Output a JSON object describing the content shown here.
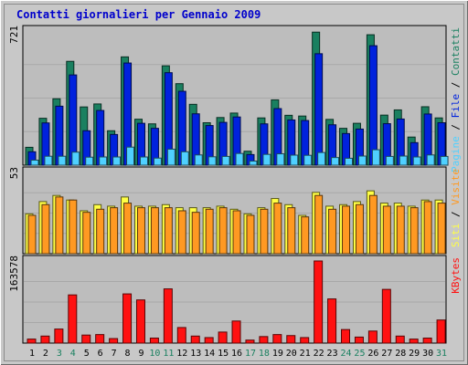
{
  "title": "Contatti giornalieri per Gennaio 2009",
  "colors": {
    "title": "#0000cc",
    "frame_bg": "#c8c8c8",
    "panel_bg": "#bdbdbd",
    "grid": "#a8a8a8",
    "pages": "#4fd0ff",
    "files": "#0022dd",
    "hits": "#1a8060",
    "sites": "#ffff44",
    "visits": "#ff9922",
    "kbytes": "#ff1111",
    "weekend_tick": "#1a8060",
    "weekday_tick": "#000000"
  },
  "chart_data": [
    {
      "type": "bar",
      "panel": "top",
      "ymax_label": "721",
      "ylim": [
        0,
        721
      ],
      "categories": [
        "1",
        "2",
        "3",
        "4",
        "5",
        "6",
        "7",
        "8",
        "9",
        "10",
        "11",
        "12",
        "13",
        "14",
        "15",
        "16",
        "17",
        "18",
        "19",
        "20",
        "21",
        "22",
        "23",
        "24",
        "25",
        "26",
        "27",
        "28",
        "29",
        "30",
        "31"
      ],
      "weekend_days": [
        "3",
        "4",
        "10",
        "11",
        "17",
        "18",
        "24",
        "25",
        "31"
      ],
      "legend": {
        "pages": "Pagine",
        "files": "File",
        "hits": "Contatti",
        "sep": " / "
      },
      "series": [
        {
          "name": "Contatti",
          "key": "hits",
          "values": [
            96,
            252,
            357,
            558,
            313,
            329,
            185,
            582,
            247,
            222,
            534,
            438,
            327,
            228,
            256,
            280,
            75,
            254,
            351,
            268,
            264,
            715,
            246,
            198,
            225,
            701,
            269,
            297,
            151,
            314,
            254
          ]
        },
        {
          "name": "File",
          "key": "files",
          "values": [
            72,
            227,
            317,
            485,
            185,
            294,
            165,
            549,
            225,
            198,
            497,
            397,
            276,
            213,
            230,
            259,
            57,
            222,
            304,
            243,
            240,
            599,
            217,
            170,
            194,
            642,
            223,
            248,
            121,
            275,
            228
          ]
        },
        {
          "name": "Pagine",
          "key": "pages",
          "values": [
            27,
            48,
            48,
            70,
            43,
            44,
            44,
            97,
            44,
            38,
            86,
            72,
            55,
            45,
            47,
            63,
            22,
            58,
            61,
            54,
            53,
            68,
            41,
            37,
            49,
            83,
            47,
            49,
            44,
            55,
            47
          ]
        }
      ]
    },
    {
      "type": "bar",
      "panel": "middle",
      "ymax_label": "53",
      "ylim": [
        0,
        53
      ],
      "categories": [
        "1",
        "2",
        "3",
        "4",
        "5",
        "6",
        "7",
        "8",
        "9",
        "10",
        "11",
        "12",
        "13",
        "14",
        "15",
        "16",
        "17",
        "18",
        "19",
        "20",
        "21",
        "22",
        "23",
        "24",
        "25",
        "26",
        "27",
        "28",
        "29",
        "30",
        "31"
      ],
      "legend": {
        "sites": "Siti",
        "visits": "Visite",
        "sep": " / "
      },
      "series": [
        {
          "name": "Siti",
          "key": "sites",
          "values": [
            26,
            34,
            38,
            35,
            28,
            32,
            31,
            37,
            31,
            31,
            32,
            30,
            30,
            30,
            31,
            29,
            26,
            30,
            36,
            32,
            25,
            40,
            31,
            32,
            34,
            41,
            33,
            33,
            31,
            35,
            35
          ]
        },
        {
          "name": "Visite",
          "key": "visits",
          "values": [
            25,
            32,
            37,
            35,
            27,
            29,
            30,
            33,
            30,
            30,
            30,
            28,
            27,
            29,
            30,
            28,
            25,
            29,
            33,
            30,
            24,
            38,
            29,
            31,
            32,
            38,
            31,
            31,
            30,
            34,
            33
          ]
        }
      ]
    },
    {
      "type": "bar",
      "panel": "bottom",
      "ymax_label": "163578",
      "ylim": [
        0,
        163578
      ],
      "categories": [
        "1",
        "2",
        "3",
        "4",
        "5",
        "6",
        "7",
        "8",
        "9",
        "10",
        "11",
        "12",
        "13",
        "14",
        "15",
        "16",
        "17",
        "18",
        "19",
        "20",
        "21",
        "22",
        "23",
        "24",
        "25",
        "26",
        "27",
        "28",
        "29",
        "30",
        "31"
      ],
      "legend": {
        "kbytes": "KBytes"
      },
      "series": [
        {
          "name": "KBytes",
          "key": "kbytes",
          "values": [
            8000,
            14000,
            28000,
            96000,
            16000,
            17000,
            9000,
            98000,
            86000,
            10000,
            108000,
            31000,
            14000,
            11000,
            22000,
            44000,
            6000,
            13000,
            17000,
            15000,
            11000,
            163578,
            88000,
            27000,
            12000,
            24000,
            107000,
            14000,
            8000,
            10000,
            46000
          ]
        }
      ]
    }
  ]
}
